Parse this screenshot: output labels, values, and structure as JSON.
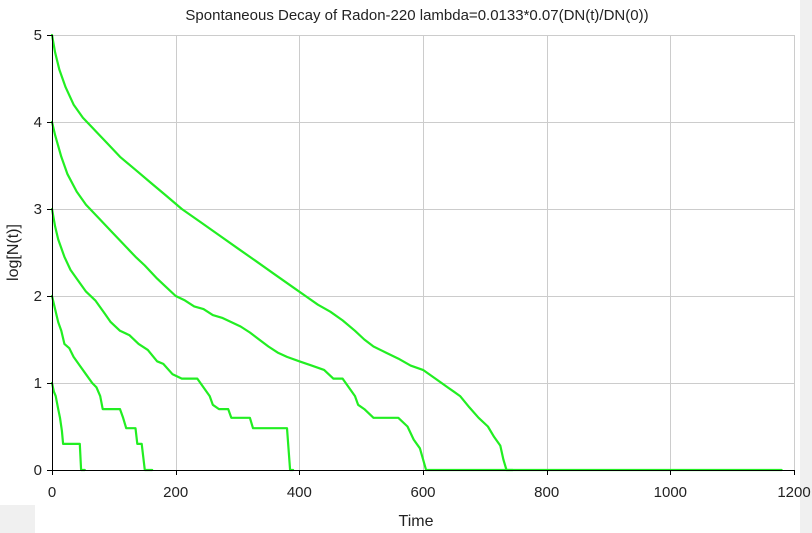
{
  "chart_data": {
    "type": "line",
    "title": "Spontaneous Decay of Radon-220 lambda=0.0133*0.07(DN(t)/DN(0))",
    "xlabel": "Time",
    "ylabel": "log[N(t)]",
    "xlim": [
      0,
      1200
    ],
    "ylim": [
      0,
      5
    ],
    "x_ticks": [
      0,
      200,
      400,
      600,
      800,
      1000,
      1200
    ],
    "x_tick_labels": [
      "0",
      "200",
      "400",
      "600",
      "800",
      "1000",
      "1200"
    ],
    "y_ticks": [
      0,
      1,
      2,
      3,
      4,
      5
    ],
    "y_tick_labels": [
      "0",
      "1",
      "2",
      "3",
      "4",
      "5"
    ],
    "grid": true,
    "legend": "none",
    "line_color": "#22ee22",
    "series": [
      {
        "points": [
          [
            0,
            1.0
          ],
          [
            3,
            0.9
          ],
          [
            6,
            0.85
          ],
          [
            10,
            0.7
          ],
          [
            13,
            0.6
          ],
          [
            16,
            0.45
          ],
          [
            18,
            0.3
          ],
          [
            45,
            0.3
          ],
          [
            47,
            0.0
          ],
          [
            53,
            0.0
          ]
        ]
      },
      {
        "points": [
          [
            0,
            2.0
          ],
          [
            5,
            1.85
          ],
          [
            10,
            1.7
          ],
          [
            15,
            1.6
          ],
          [
            20,
            1.45
          ],
          [
            28,
            1.4
          ],
          [
            35,
            1.3
          ],
          [
            45,
            1.2
          ],
          [
            55,
            1.1
          ],
          [
            65,
            1.0
          ],
          [
            72,
            0.95
          ],
          [
            78,
            0.85
          ],
          [
            82,
            0.7
          ],
          [
            110,
            0.7
          ],
          [
            115,
            0.6
          ],
          [
            120,
            0.48
          ],
          [
            135,
            0.48
          ],
          [
            138,
            0.3
          ],
          [
            145,
            0.3
          ],
          [
            150,
            0.0
          ],
          [
            162,
            0.0
          ]
        ]
      },
      {
        "points": [
          [
            0,
            3.0
          ],
          [
            5,
            2.8
          ],
          [
            10,
            2.65
          ],
          [
            20,
            2.45
          ],
          [
            30,
            2.3
          ],
          [
            40,
            2.2
          ],
          [
            55,
            2.05
          ],
          [
            70,
            1.95
          ],
          [
            85,
            1.8
          ],
          [
            95,
            1.7
          ],
          [
            110,
            1.6
          ],
          [
            125,
            1.55
          ],
          [
            140,
            1.45
          ],
          [
            155,
            1.38
          ],
          [
            170,
            1.25
          ],
          [
            180,
            1.22
          ],
          [
            195,
            1.1
          ],
          [
            210,
            1.05
          ],
          [
            235,
            1.05
          ],
          [
            245,
            0.95
          ],
          [
            255,
            0.85
          ],
          [
            260,
            0.75
          ],
          [
            270,
            0.7
          ],
          [
            285,
            0.7
          ],
          [
            290,
            0.6
          ],
          [
            320,
            0.6
          ],
          [
            325,
            0.48
          ],
          [
            380,
            0.48
          ],
          [
            385,
            0.0
          ],
          [
            390,
            0.0
          ]
        ]
      },
      {
        "points": [
          [
            0,
            4.0
          ],
          [
            5,
            3.85
          ],
          [
            15,
            3.6
          ],
          [
            25,
            3.4
          ],
          [
            40,
            3.2
          ],
          [
            55,
            3.05
          ],
          [
            75,
            2.9
          ],
          [
            95,
            2.75
          ],
          [
            115,
            2.6
          ],
          [
            135,
            2.45
          ],
          [
            150,
            2.35
          ],
          [
            170,
            2.2
          ],
          [
            185,
            2.1
          ],
          [
            200,
            2.0
          ],
          [
            215,
            1.95
          ],
          [
            230,
            1.88
          ],
          [
            245,
            1.85
          ],
          [
            260,
            1.78
          ],
          [
            275,
            1.75
          ],
          [
            290,
            1.7
          ],
          [
            305,
            1.65
          ],
          [
            320,
            1.58
          ],
          [
            335,
            1.5
          ],
          [
            350,
            1.42
          ],
          [
            365,
            1.35
          ],
          [
            380,
            1.3
          ],
          [
            400,
            1.25
          ],
          [
            420,
            1.2
          ],
          [
            440,
            1.15
          ],
          [
            455,
            1.05
          ],
          [
            470,
            1.05
          ],
          [
            480,
            0.95
          ],
          [
            490,
            0.85
          ],
          [
            495,
            0.75
          ],
          [
            505,
            0.7
          ],
          [
            520,
            0.6
          ],
          [
            560,
            0.6
          ],
          [
            575,
            0.5
          ],
          [
            585,
            0.35
          ],
          [
            595,
            0.25
          ],
          [
            605,
            0.0
          ],
          [
            1180,
            0.0
          ]
        ]
      },
      {
        "points": [
          [
            0,
            5.0
          ],
          [
            5,
            4.8
          ],
          [
            12,
            4.6
          ],
          [
            22,
            4.4
          ],
          [
            35,
            4.2
          ],
          [
            50,
            4.05
          ],
          [
            70,
            3.9
          ],
          [
            90,
            3.75
          ],
          [
            110,
            3.6
          ],
          [
            135,
            3.45
          ],
          [
            160,
            3.3
          ],
          [
            185,
            3.15
          ],
          [
            210,
            3.0
          ],
          [
            240,
            2.85
          ],
          [
            270,
            2.7
          ],
          [
            300,
            2.55
          ],
          [
            330,
            2.4
          ],
          [
            360,
            2.25
          ],
          [
            390,
            2.1
          ],
          [
            410,
            2.0
          ],
          [
            430,
            1.9
          ],
          [
            450,
            1.82
          ],
          [
            470,
            1.72
          ],
          [
            490,
            1.6
          ],
          [
            505,
            1.5
          ],
          [
            520,
            1.42
          ],
          [
            540,
            1.35
          ],
          [
            560,
            1.28
          ],
          [
            580,
            1.2
          ],
          [
            600,
            1.15
          ],
          [
            620,
            1.05
          ],
          [
            640,
            0.95
          ],
          [
            650,
            0.9
          ],
          [
            660,
            0.85
          ],
          [
            675,
            0.72
          ],
          [
            690,
            0.6
          ],
          [
            705,
            0.5
          ],
          [
            715,
            0.38
          ],
          [
            725,
            0.28
          ],
          [
            730,
            0.12
          ],
          [
            735,
            0.0
          ],
          [
            745,
            0.0
          ]
        ]
      }
    ]
  }
}
